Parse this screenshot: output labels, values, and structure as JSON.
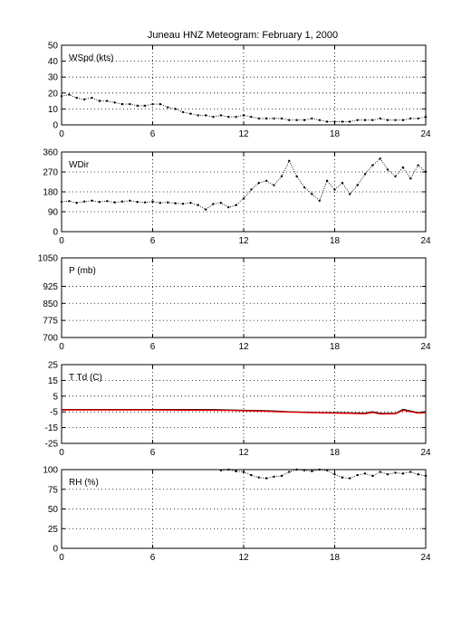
{
  "page": {
    "title": "Juneau HNZ Meteogram:  February  1, 2000"
  },
  "chart_data": [
    {
      "type": "scatter",
      "label": "WSpd (kts)",
      "x_ticks": [
        0,
        6,
        12,
        18,
        24
      ],
      "xlim": [
        0,
        24
      ],
      "ylim": [
        0,
        50
      ],
      "y_ticks": [
        0,
        10,
        20,
        30,
        40,
        50
      ],
      "grid": true,
      "series": [
        {
          "color": "#000000",
          "x": [
            0.0,
            0.5,
            1.0,
            1.5,
            2.0,
            2.5,
            3.0,
            3.5,
            4.0,
            4.5,
            5.0,
            5.5,
            6.0,
            6.5,
            7.0,
            7.5,
            8.0,
            8.5,
            9.0,
            9.5,
            10.0,
            10.5,
            11.0,
            11.5,
            12.0,
            12.5,
            13.0,
            13.5,
            14.0,
            14.5,
            15.0,
            15.5,
            16.0,
            16.5,
            17.0,
            17.5,
            18.0,
            18.5,
            19.0,
            19.5,
            20.0,
            20.5,
            21.0,
            21.5,
            22.0,
            22.5,
            23.0,
            23.5,
            24.0
          ],
          "values": [
            18,
            19,
            17,
            16,
            17,
            15,
            15,
            14,
            13,
            13,
            12,
            12,
            13,
            13,
            11,
            10,
            8,
            7,
            6,
            6,
            5,
            6,
            5,
            5,
            6,
            5,
            4,
            4,
            4,
            4,
            3,
            3,
            3,
            4,
            3,
            2,
            2,
            2,
            2,
            3,
            3,
            3,
            4,
            3,
            3,
            3,
            4,
            4,
            5
          ]
        }
      ]
    },
    {
      "type": "scatter",
      "label": "WDir",
      "x_ticks": [
        0,
        6,
        12,
        18,
        24
      ],
      "xlim": [
        0,
        24
      ],
      "ylim": [
        0,
        360
      ],
      "y_ticks": [
        0,
        90,
        180,
        270,
        360
      ],
      "grid": true,
      "series": [
        {
          "color": "#000000",
          "x": [
            0.0,
            0.5,
            1.0,
            1.5,
            2.0,
            2.5,
            3.0,
            3.5,
            4.0,
            4.5,
            5.0,
            5.5,
            6.0,
            6.5,
            7.0,
            7.5,
            8.0,
            8.5,
            9.0,
            9.5,
            10.0,
            10.5,
            11.0,
            11.5,
            12.0,
            12.5,
            13.0,
            13.5,
            14.0,
            14.5,
            15.0,
            15.5,
            16.0,
            16.5,
            17.0,
            17.5,
            18.0,
            18.5,
            19.0,
            19.5,
            20.0,
            20.5,
            21.0,
            21.5,
            22.0,
            22.5,
            23.0,
            23.5,
            24.0
          ],
          "values": [
            135,
            138,
            130,
            136,
            140,
            134,
            138,
            132,
            136,
            140,
            134,
            132,
            136,
            130,
            132,
            128,
            126,
            130,
            120,
            100,
            125,
            130,
            110,
            120,
            150,
            190,
            220,
            230,
            210,
            250,
            320,
            250,
            200,
            170,
            140,
            230,
            190,
            220,
            170,
            210,
            260,
            300,
            330,
            280,
            250,
            290,
            240,
            300,
            270
          ]
        }
      ]
    },
    {
      "type": "line",
      "label": "P (mb)",
      "x_ticks": [
        0,
        6,
        12,
        18,
        24
      ],
      "xlim": [
        0,
        24
      ],
      "ylim": [
        700,
        1050
      ],
      "y_ticks": [
        700,
        775,
        850,
        925,
        1050
      ],
      "grid": true,
      "series": []
    },
    {
      "type": "line",
      "label": "T Td (C)",
      "x_ticks": [
        0,
        6,
        12,
        18,
        24
      ],
      "xlim": [
        0,
        24
      ],
      "ylim": [
        -25,
        25
      ],
      "y_ticks": [
        -25,
        -15,
        -5,
        5,
        15,
        25
      ],
      "grid": true,
      "series": [
        {
          "color": "#000000",
          "x": [
            0,
            2,
            4,
            6,
            8,
            10,
            11,
            12,
            13,
            14,
            15,
            16,
            17,
            18,
            19,
            20,
            20.5,
            21,
            22,
            22.5,
            23,
            23.5,
            24
          ],
          "values": [
            -3.5,
            -3.5,
            -3.5,
            -3.5,
            -3.5,
            -3.6,
            -3.8,
            -4.0,
            -4.2,
            -4.5,
            -5.0,
            -5.2,
            -5.4,
            -5.5,
            -5.7,
            -5.8,
            -5.0,
            -6.0,
            -6.0,
            -3.5,
            -4.5,
            -5.5,
            -5.0
          ]
        },
        {
          "color": "#ff0000",
          "x": [
            0,
            2,
            4,
            6,
            8,
            10,
            11,
            12,
            13,
            14,
            15,
            16,
            17,
            18,
            19,
            20,
            20.5,
            21,
            22,
            22.5,
            23,
            23.5,
            24
          ],
          "values": [
            -3.8,
            -3.8,
            -3.8,
            -3.8,
            -3.9,
            -4.0,
            -4.1,
            -4.3,
            -4.5,
            -4.8,
            -5.2,
            -5.4,
            -5.6,
            -5.8,
            -6.0,
            -6.2,
            -5.4,
            -6.3,
            -6.2,
            -4.0,
            -4.9,
            -5.8,
            -5.5
          ]
        }
      ]
    },
    {
      "type": "scatter",
      "label": "RH (%)",
      "x_ticks": [
        0,
        6,
        12,
        18,
        24
      ],
      "xlim": [
        0,
        24
      ],
      "ylim": [
        0,
        100
      ],
      "y_ticks": [
        0,
        25,
        50,
        75,
        100
      ],
      "grid": true,
      "series": [
        {
          "color": "#000000",
          "x": [
            10.5,
            11.0,
            11.5,
            12.0,
            12.5,
            13.0,
            13.5,
            14.0,
            14.5,
            15.0,
            15.5,
            16.0,
            16.5,
            17.0,
            17.5,
            18.0,
            18.5,
            19.0,
            19.5,
            20.0,
            20.5,
            21.0,
            21.5,
            22.0,
            22.5,
            23.0,
            23.5,
            24.0
          ],
          "values": [
            99,
            100,
            98,
            97,
            93,
            90,
            89,
            91,
            92,
            97,
            100,
            99,
            98,
            100,
            99,
            94,
            90,
            89,
            93,
            95,
            92,
            97,
            94,
            96,
            95,
            97,
            94,
            92
          ]
        }
      ]
    }
  ]
}
